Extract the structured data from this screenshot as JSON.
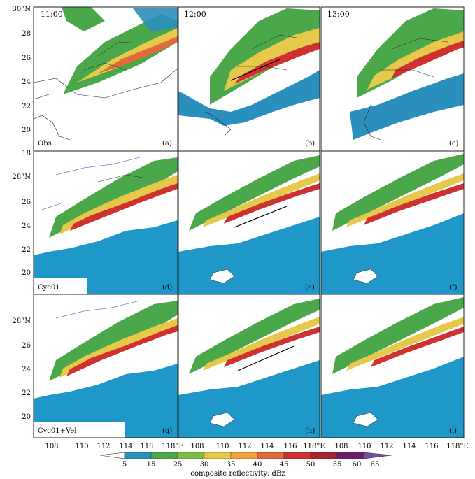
{
  "panels": [
    {
      "id": "a",
      "time": "11:00",
      "label": "(a)",
      "source": "Obs"
    },
    {
      "id": "b",
      "time": "12:00",
      "label": "(b)",
      "source": ""
    },
    {
      "id": "c",
      "time": "13:00",
      "label": "(c)",
      "source": ""
    },
    {
      "id": "d",
      "time": "",
      "label": "(d)",
      "source": "Cyc01"
    },
    {
      "id": "e",
      "time": "",
      "label": "(e)",
      "source": ""
    },
    {
      "id": "f",
      "time": "",
      "label": "(f)",
      "source": ""
    },
    {
      "id": "g",
      "time": "",
      "label": "(g)",
      "source": "Cyc01+Vel"
    },
    {
      "id": "h",
      "time": "",
      "label": "(h)",
      "source": ""
    },
    {
      "id": "i",
      "time": "",
      "label": "(i)",
      "source": ""
    }
  ],
  "axes": {
    "lat_row1": [
      "30°N",
      "28",
      "26",
      "24",
      "22",
      "20",
      "18"
    ],
    "lat_row2": [
      "28°N",
      "26",
      "24",
      "22",
      "20"
    ],
    "lat_row3": [
      "28°N",
      "26",
      "24",
      "22",
      "20"
    ],
    "lon_col1": [
      "108",
      "110",
      "112",
      "114"
    ],
    "lon_col2": [
      "116",
      "118°E",
      "108",
      "110",
      "112",
      "114"
    ],
    "lon_col3": [
      "116",
      "118°E",
      "108",
      "110",
      "112",
      "114",
      "116",
      "118°E"
    ],
    "lon_bottom": [
      "108",
      "110",
      "112",
      "114",
      "116",
      "118°E",
      "108",
      "110",
      "112",
      "114",
      "116",
      "118°E",
      "108",
      "110",
      "112",
      "114",
      "116",
      "118°E"
    ]
  },
  "colorbar": {
    "ticks": [
      "5",
      "15",
      "25",
      "30",
      "35",
      "40",
      "45",
      "50",
      "55",
      "60",
      "65"
    ],
    "colors": [
      "#2a8fbd",
      "#4aa84a",
      "#7dbf45",
      "#e6c84a",
      "#f0a23c",
      "#e3683a",
      "#cf3030",
      "#a8232a",
      "#6a1f6a",
      "#7a4aa0"
    ],
    "title": "composite reflectivity: dBz"
  },
  "legend_colors": {
    "ocean": "#1f97c9",
    "land": "#ffffff",
    "contour": "#3a3aa8",
    "border": "#222222"
  }
}
